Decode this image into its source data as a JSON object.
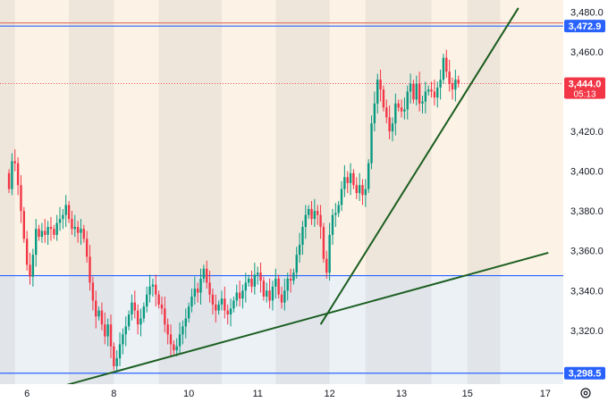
{
  "chart_data": {
    "type": "candlestick",
    "ylim": [
      3293,
      3486
    ],
    "y_ticks": [
      {
        "value": 3320,
        "label": "3,320.0"
      },
      {
        "value": 3340,
        "label": "3,340.0"
      },
      {
        "value": 3360,
        "label": "3,360.0"
      },
      {
        "value": 3380,
        "label": "3,380.0"
      },
      {
        "value": 3400,
        "label": "3,400.0"
      },
      {
        "value": 3420,
        "label": "3,420.0"
      },
      {
        "value": 3440,
        "label": "3,440.0"
      },
      {
        "value": 3460,
        "label": "3,460.0"
      },
      {
        "value": 3480,
        "label": "3,480.0"
      }
    ],
    "x_ticks": [
      {
        "label": "6",
        "pos": 6
      },
      {
        "label": "8",
        "pos": 35
      },
      {
        "label": "10",
        "pos": 60
      },
      {
        "label": "11",
        "pos": 83
      },
      {
        "label": "12",
        "pos": 107
      },
      {
        "label": "13",
        "pos": 131
      },
      {
        "label": "15",
        "pos": 153
      },
      {
        "label": "17",
        "pos": 179
      }
    ],
    "xlim": [
      -3,
      185
    ],
    "horizontal_levels": [
      {
        "name": "resistance",
        "value": 3472.9,
        "label": "3,472.9",
        "color": "#2962ff"
      },
      {
        "name": "support-mid",
        "value": 3347.5,
        "color": "#2962ff"
      },
      {
        "name": "support-low",
        "value": 3298.5,
        "label": "3,298.5",
        "color": "#2962ff"
      },
      {
        "name": "top-line",
        "value": 3474.5,
        "color": "#e07a6a"
      }
    ],
    "last_price": {
      "value": 3444.0,
      "label": "3,444.0",
      "countdown": "05:13",
      "color": "#f23645"
    },
    "trendlines": [
      {
        "name": "long-uptrend",
        "color": "#1b5e20",
        "from": [
          13,
          3290
        ],
        "to": [
          180,
          3359
        ]
      },
      {
        "name": "steep-uptrend",
        "color": "#1b5e20",
        "from": [
          104,
          3323
        ],
        "to": [
          170,
          3482
        ]
      }
    ],
    "day_bands": [
      {
        "from": -3,
        "to": 2,
        "shade": "dark"
      },
      {
        "from": 2,
        "to": 20,
        "shade": "light"
      },
      {
        "from": 20,
        "to": 35,
        "shade": "dark"
      },
      {
        "from": 35,
        "to": 50,
        "shade": "light"
      },
      {
        "from": 50,
        "to": 71,
        "shade": "dark"
      },
      {
        "from": 71,
        "to": 89,
        "shade": "light"
      },
      {
        "from": 89,
        "to": 107,
        "shade": "dark"
      },
      {
        "from": 107,
        "to": 119,
        "shade": "light"
      },
      {
        "from": 119,
        "to": 141,
        "shade": "dark"
      },
      {
        "from": 141,
        "to": 153,
        "shade": "light"
      },
      {
        "from": 153,
        "to": 164,
        "shade": "dark"
      },
      {
        "from": 164,
        "to": 185,
        "shade": "light"
      }
    ],
    "zones": [
      {
        "name": "upper-zone",
        "from": 3347.5,
        "to": 3486,
        "tint": "#f5d9b5"
      },
      {
        "name": "lower-zone",
        "from": 3293,
        "to": 3347.5,
        "tint": "#c9d8e6"
      }
    ],
    "colors": {
      "up": "#089981",
      "down": "#f23645",
      "axis_text": "#131722",
      "badge_blue": "#2962ff"
    },
    "closes": [
      3391,
      3405,
      3404,
      3393,
      3380,
      3366,
      3353,
      3347,
      3358,
      3371,
      3367,
      3370,
      3368,
      3372,
      3371,
      3368,
      3374,
      3376,
      3378,
      3383,
      3376,
      3371,
      3372,
      3369,
      3371,
      3366,
      3357,
      3344,
      3335,
      3327,
      3330,
      3323,
      3317,
      3323,
      3312,
      3302,
      3306,
      3313,
      3318,
      3322,
      3328,
      3334,
      3330,
      3323,
      3326,
      3332,
      3338,
      3342,
      3343,
      3338,
      3333,
      3331,
      3323,
      3318,
      3313,
      3310,
      3312,
      3318,
      3322,
      3326,
      3332,
      3337,
      3341,
      3339,
      3346,
      3351,
      3344,
      3338,
      3333,
      3330,
      3333,
      3336,
      3330,
      3328,
      3331,
      3335,
      3339,
      3336,
      3340,
      3344,
      3346,
      3342,
      3348,
      3349,
      3345,
      3337,
      3340,
      3335,
      3342,
      3346,
      3338,
      3334,
      3340,
      3346,
      3345,
      3349,
      3358,
      3363,
      3372,
      3378,
      3381,
      3376,
      3380,
      3378,
      3372,
      3356,
      3349,
      3368,
      3378,
      3379,
      3383,
      3391,
      3397,
      3394,
      3399,
      3393,
      3389,
      3393,
      3388,
      3391,
      3404,
      3424,
      3434,
      3446,
      3441,
      3432,
      3427,
      3420,
      3424,
      3434,
      3432,
      3430,
      3431,
      3440,
      3444,
      3436,
      3444,
      3434,
      3435,
      3440,
      3441,
      3440,
      3437,
      3442,
      3446,
      3457,
      3450,
      3444,
      3441,
      3446,
      3444
    ],
    "open_first": 3399
  }
}
